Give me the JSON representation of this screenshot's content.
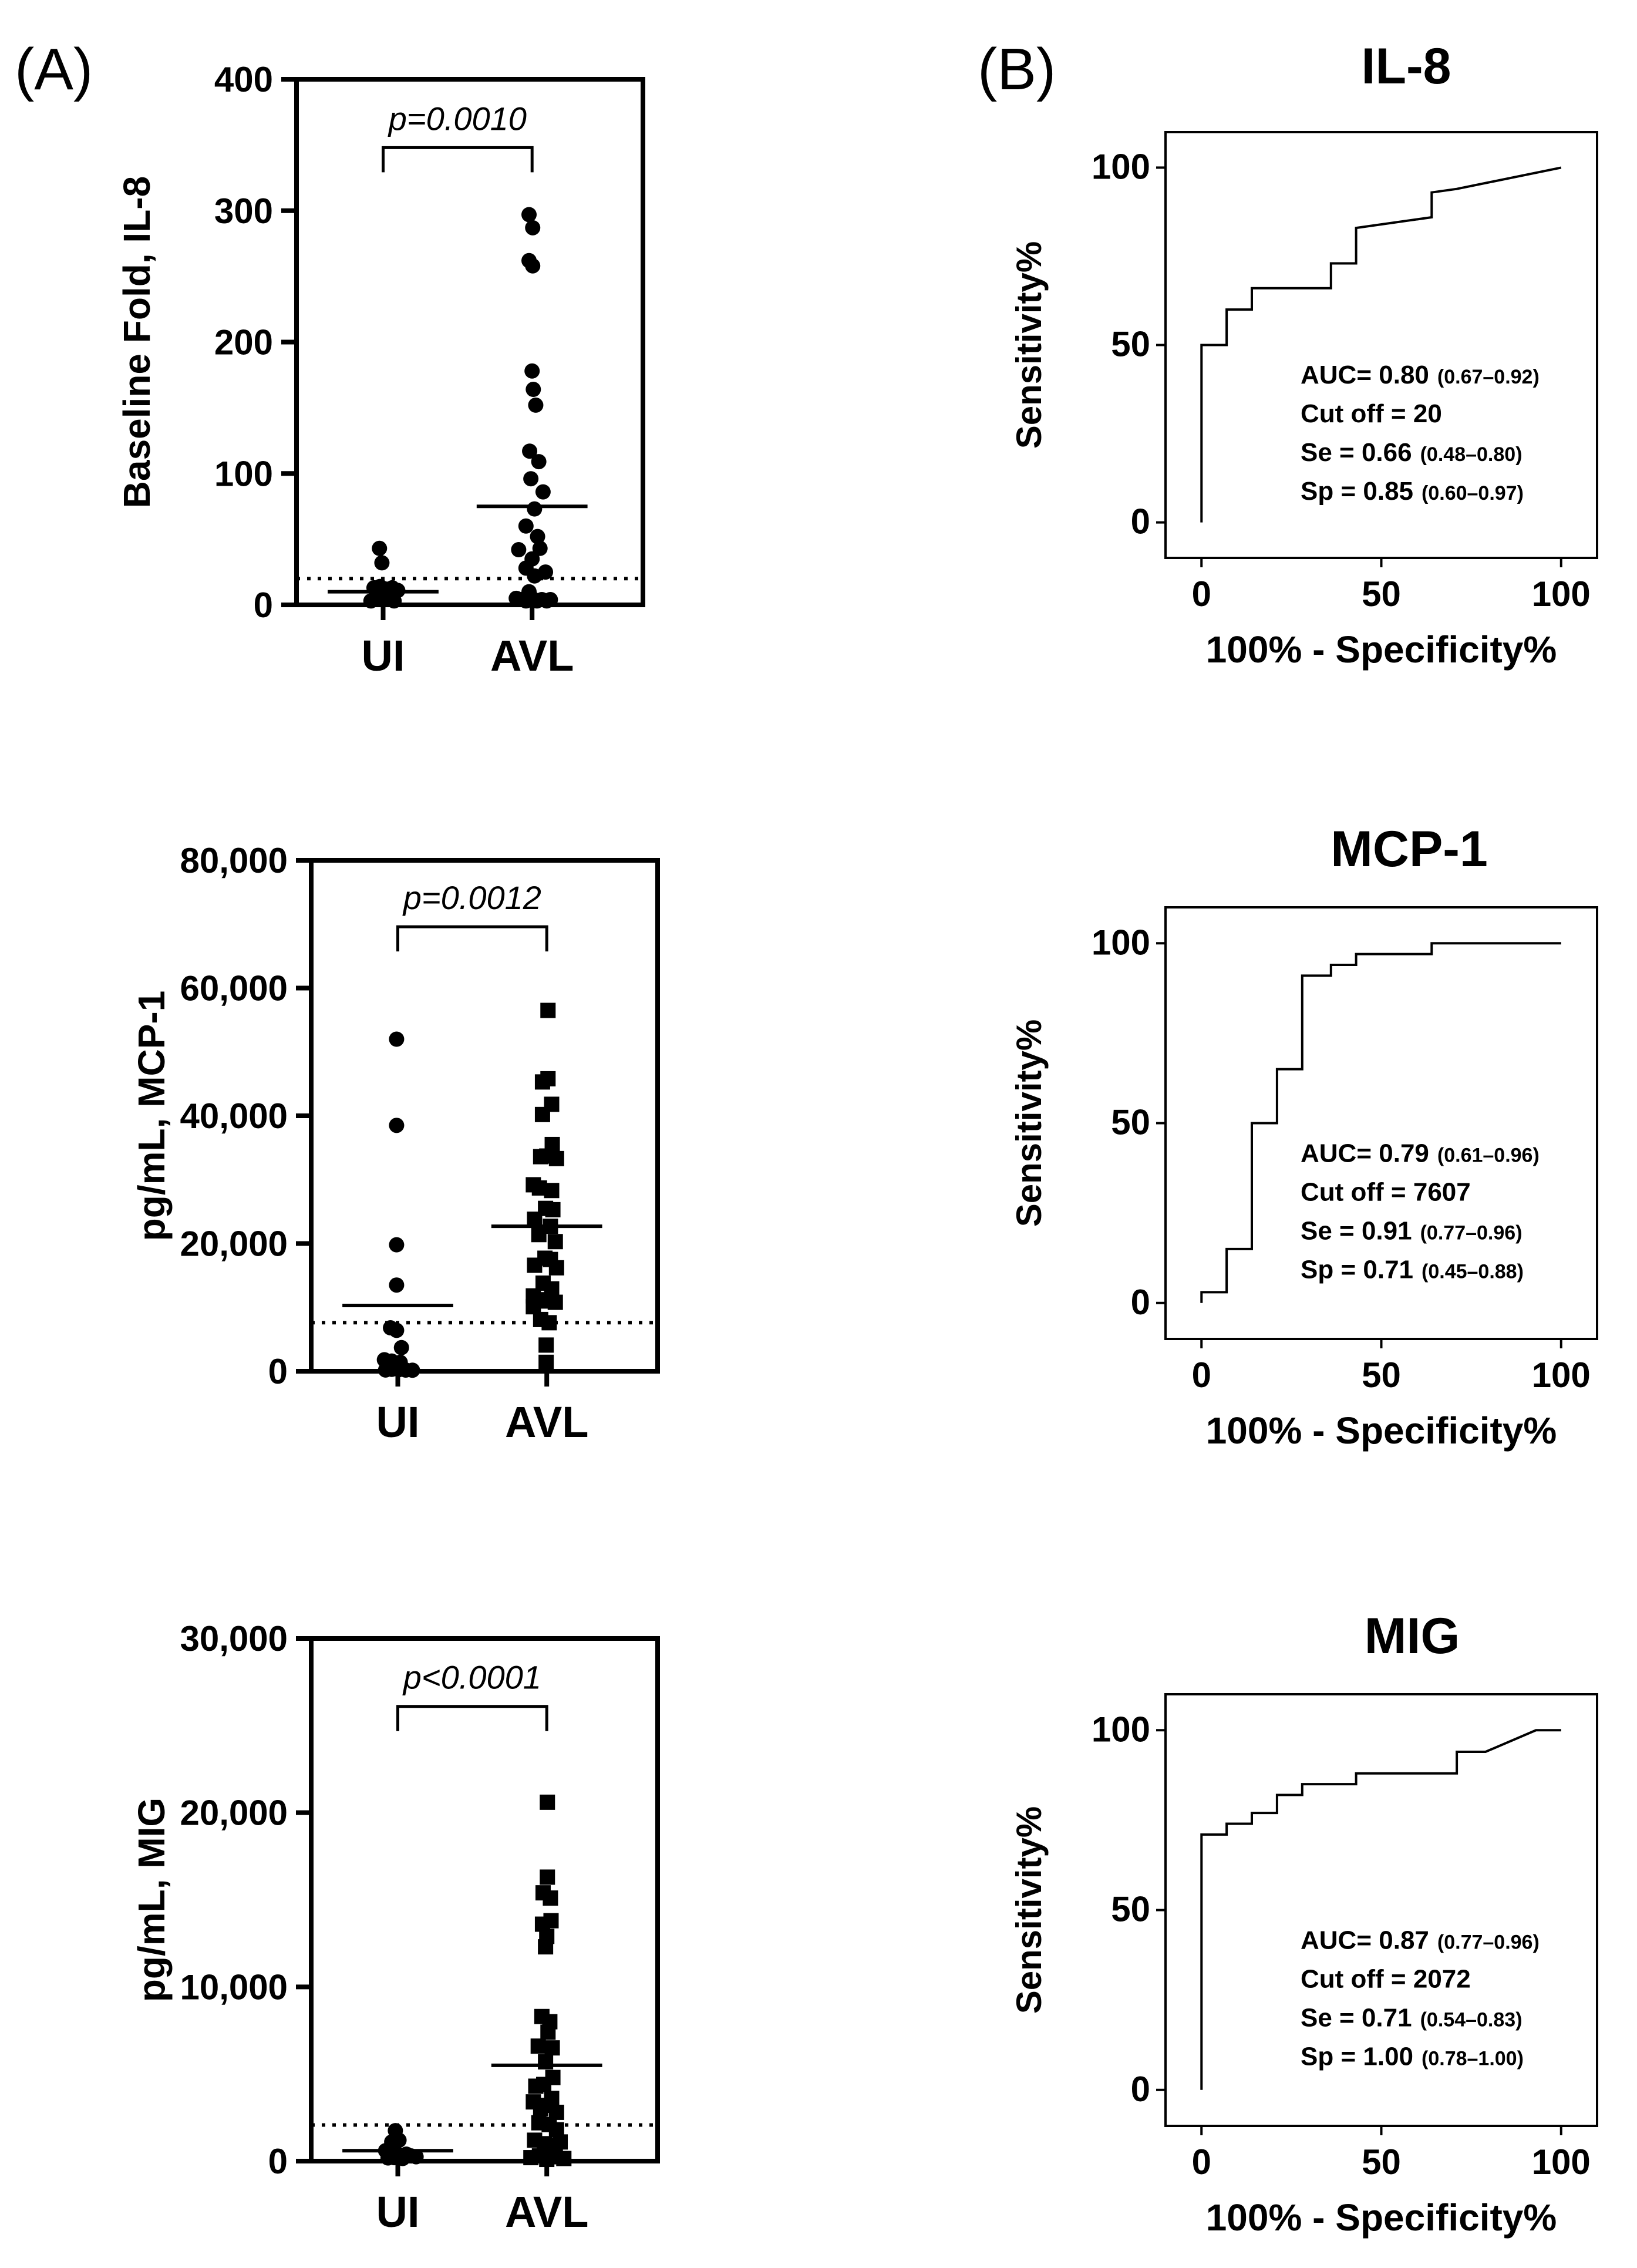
{
  "panel_labels": {
    "a": "(A)",
    "b": "(B)"
  },
  "chart_data": [
    {
      "type": "scatter",
      "id": "a1",
      "ylabel": "Baseline Fold, IL-8",
      "categories": [
        "UI",
        "AVL"
      ],
      "ylim": [
        0,
        400
      ],
      "yticks": [
        0,
        100,
        200,
        300,
        400
      ],
      "ytick_labels": [
        "0",
        "100",
        "200",
        "300",
        "400"
      ],
      "p_value": "p=0.0010",
      "cutoff_line": 20,
      "marker": {
        "UI": "circle",
        "AVL": "circle"
      },
      "series": [
        {
          "name": "UI",
          "mean": 10,
          "points": [
            [
              -0.2,
              3
            ],
            [
              -0.12,
              5
            ],
            [
              -0.05,
              8
            ],
            [
              0.02,
              4
            ],
            [
              0.1,
              6
            ],
            [
              0.18,
              3
            ],
            [
              -0.15,
              13
            ],
            [
              -0.05,
              14
            ],
            [
              0.05,
              12
            ],
            [
              0.15,
              13
            ],
            [
              0.24,
              11
            ],
            [
              -0.02,
              32
            ],
            [
              -0.06,
              43
            ]
          ]
        },
        {
          "name": "AVL",
          "mean": 75,
          "points": [
            [
              -0.05,
              297
            ],
            [
              0.01,
              287
            ],
            [
              -0.05,
              262
            ],
            [
              0.01,
              258
            ],
            [
              0.0,
              178
            ],
            [
              0.02,
              164
            ],
            [
              0.06,
              152
            ],
            [
              -0.04,
              117
            ],
            [
              0.11,
              109
            ],
            [
              -0.02,
              96
            ],
            [
              0.18,
              86
            ],
            [
              0.04,
              73
            ],
            [
              -0.1,
              60
            ],
            [
              0.09,
              52
            ],
            [
              -0.22,
              42
            ],
            [
              -0.1,
              28
            ],
            [
              0.0,
              35
            ],
            [
              0.13,
              43
            ],
            [
              0.22,
              25
            ],
            [
              0.04,
              22
            ],
            [
              -0.26,
              5
            ],
            [
              -0.18,
              4
            ],
            [
              -0.1,
              3
            ],
            [
              0.0,
              5
            ],
            [
              0.08,
              3
            ],
            [
              0.16,
              4
            ],
            [
              0.24,
              3
            ],
            [
              0.3,
              4
            ],
            [
              -0.05,
              10
            ]
          ]
        }
      ]
    },
    {
      "type": "scatter",
      "id": "a2",
      "ylabel": "pg/mL, MCP-1",
      "categories": [
        "UI",
        "AVL"
      ],
      "ylim": [
        0,
        80000
      ],
      "yticks": [
        0,
        20000,
        40000,
        60000,
        80000
      ],
      "ytick_labels": [
        "0",
        "20,000",
        "40,000",
        "60,000",
        "80,000"
      ],
      "p_value": "p=0.0012",
      "cutoff_line": 7607,
      "marker": {
        "UI": "circle",
        "AVL": "square"
      },
      "series": [
        {
          "name": "UI",
          "mean": 10300,
          "points": [
            [
              -0.02,
              52000
            ],
            [
              -0.02,
              38500
            ],
            [
              -0.02,
              19800
            ],
            [
              -0.02,
              13500
            ],
            [
              -0.12,
              6800
            ],
            [
              -0.02,
              6400
            ],
            [
              0.06,
              3700
            ],
            [
              -0.22,
              1800
            ],
            [
              -0.1,
              1600
            ],
            [
              0.04,
              1400
            ],
            [
              -0.2,
              200
            ],
            [
              -0.1,
              300
            ],
            [
              0.02,
              250
            ],
            [
              0.13,
              180
            ],
            [
              0.24,
              160
            ]
          ]
        },
        {
          "name": "AVL",
          "mean": 22700,
          "points": [
            [
              0.02,
              56500
            ],
            [
              0.02,
              45800
            ],
            [
              -0.07,
              45300
            ],
            [
              0.08,
              41800
            ],
            [
              -0.07,
              40200
            ],
            [
              0.09,
              35500
            ],
            [
              -0.1,
              33600
            ],
            [
              0.0,
              33700
            ],
            [
              0.16,
              33300
            ],
            [
              -0.22,
              29200
            ],
            [
              -0.12,
              28700
            ],
            [
              0.08,
              28300
            ],
            [
              -0.02,
              25500
            ],
            [
              0.1,
              25300
            ],
            [
              -0.2,
              23800
            ],
            [
              0.06,
              22700
            ],
            [
              -0.13,
              21400
            ],
            [
              0.14,
              20300
            ],
            [
              -0.03,
              17700
            ],
            [
              0.06,
              17500
            ],
            [
              -0.2,
              16600
            ],
            [
              0.16,
              16200
            ],
            [
              -0.06,
              13800
            ],
            [
              0.08,
              12900
            ],
            [
              -0.22,
              11800
            ],
            [
              -0.12,
              11200
            ],
            [
              0.0,
              11000
            ],
            [
              0.14,
              10800
            ],
            [
              -0.22,
              10100
            ],
            [
              -0.1,
              8100
            ],
            [
              0.04,
              7600
            ],
            [
              -0.01,
              4100
            ],
            [
              -0.01,
              1400
            ]
          ]
        }
      ]
    },
    {
      "type": "scatter",
      "id": "a3",
      "ylabel": "pg/mL, MIG",
      "categories": [
        "UI",
        "AVL"
      ],
      "ylim": [
        0,
        30000
      ],
      "yticks": [
        0,
        10000,
        20000,
        30000
      ],
      "ytick_labels": [
        "0",
        "10,000",
        "20,000",
        "30,000"
      ],
      "p_value": "p<0.0001",
      "cutoff_line": 2072,
      "marker": {
        "UI": "circle",
        "AVL": "square"
      },
      "series": [
        {
          "name": "UI",
          "mean": 600,
          "points": [
            [
              -0.04,
              1750
            ],
            [
              -0.1,
              1100
            ],
            [
              0.02,
              1200
            ],
            [
              -0.2,
              600
            ],
            [
              -0.12,
              400
            ],
            [
              -0.04,
              500
            ],
            [
              0.06,
              300
            ],
            [
              0.14,
              400
            ],
            [
              0.22,
              300
            ],
            [
              0.3,
              250
            ],
            [
              -0.06,
              200
            ],
            [
              0.08,
              150
            ],
            [
              -0.16,
              180
            ]
          ]
        },
        {
          "name": "AVL",
          "mean": 5500,
          "points": [
            [
              0.01,
              20600
            ],
            [
              0.01,
              16300
            ],
            [
              -0.06,
              15400
            ],
            [
              0.06,
              15100
            ],
            [
              -0.07,
              13600
            ],
            [
              0.07,
              13800
            ],
            [
              0.0,
              12900
            ],
            [
              -0.02,
              12300
            ],
            [
              -0.08,
              8300
            ],
            [
              0.05,
              8000
            ],
            [
              0.02,
              7400
            ],
            [
              -0.14,
              6600
            ],
            [
              0.09,
              6500
            ],
            [
              -0.02,
              5700
            ],
            [
              0.1,
              4800
            ],
            [
              -0.18,
              4300
            ],
            [
              -0.05,
              4400
            ],
            [
              0.08,
              3600
            ],
            [
              -0.22,
              3400
            ],
            [
              -0.1,
              3000
            ],
            [
              0.02,
              3200
            ],
            [
              0.16,
              2800
            ],
            [
              -0.13,
              2200
            ],
            [
              0.04,
              2100
            ],
            [
              0.16,
              1800
            ],
            [
              -0.2,
              1200
            ],
            [
              -0.04,
              1000
            ],
            [
              0.1,
              900
            ],
            [
              0.22,
              1100
            ],
            [
              -0.26,
              200
            ],
            [
              -0.12,
              300
            ],
            [
              0.0,
              100
            ],
            [
              0.14,
              250
            ],
            [
              0.28,
              150
            ]
          ]
        }
      ]
    },
    {
      "type": "line",
      "id": "b1",
      "title": "IL-8",
      "xlabel": "100% - Specificity%",
      "ylabel": "Sensitivity%",
      "xlim": [
        -10,
        110
      ],
      "ylim": [
        -10,
        110
      ],
      "xticks": [
        0,
        50,
        100
      ],
      "yticks": [
        0,
        50,
        100
      ],
      "x": [
        0,
        0,
        0,
        7,
        7,
        14,
        14,
        36,
        36,
        43,
        43,
        64,
        64,
        71,
        100
      ],
      "y": [
        0,
        47,
        50,
        50,
        60,
        60,
        66,
        66,
        73,
        73,
        83,
        86,
        93,
        94,
        100
      ],
      "stats": [
        {
          "label": "AUC= 0.80",
          "ci": "(0.67–0.92)"
        },
        {
          "label": "Cut off = 20",
          "ci": ""
        },
        {
          "label": "Se = 0.66",
          "ci": "(0.48–0.80)"
        },
        {
          "label": "Sp = 0.85",
          "ci": "(0.60–0.97)"
        }
      ]
    },
    {
      "type": "line",
      "id": "b2",
      "title": "MCP-1",
      "xlabel": "100% - Specificity%",
      "ylabel": "Sensitivity%",
      "xlim": [
        -10,
        110
      ],
      "ylim": [
        -10,
        110
      ],
      "xticks": [
        0,
        50,
        100
      ],
      "yticks": [
        0,
        50,
        100
      ],
      "x": [
        0,
        0,
        7,
        7,
        14,
        14,
        21,
        21,
        28,
        28,
        36,
        36,
        43,
        43,
        64,
        64,
        100
      ],
      "y": [
        0,
        3,
        3,
        15,
        15,
        50,
        50,
        65,
        65,
        91,
        91,
        94,
        94,
        97,
        97,
        100,
        100
      ],
      "stats": [
        {
          "label": "AUC= 0.79",
          "ci": "(0.61–0.96)"
        },
        {
          "label": "Cut off = 7607",
          "ci": ""
        },
        {
          "label": "Se = 0.91",
          "ci": "(0.77–0.96)"
        },
        {
          "label": "Sp = 0.71",
          "ci": "(0.45–0.88)"
        }
      ]
    },
    {
      "type": "line",
      "id": "b3",
      "title": "MIG",
      "xlabel": "100% - Specificity%",
      "ylabel": "Sensitivity%",
      "xlim": [
        -10,
        110
      ],
      "ylim": [
        -10,
        110
      ],
      "xticks": [
        0,
        50,
        100
      ],
      "yticks": [
        0,
        50,
        100
      ],
      "x": [
        0,
        0,
        7,
        7,
        14,
        14,
        21,
        21,
        28,
        28,
        43,
        43,
        71,
        71,
        79,
        93,
        100
      ],
      "y": [
        0,
        71,
        71,
        74,
        74,
        77,
        77,
        82,
        82,
        85,
        85,
        88,
        88,
        94,
        94,
        100,
        100
      ],
      "stats": [
        {
          "label": "AUC= 0.87",
          "ci": "(0.77–0.96)"
        },
        {
          "label": "Cut off = 2072",
          "ci": ""
        },
        {
          "label": "Se = 0.71",
          "ci": "(0.54–0.83)"
        },
        {
          "label": "Sp = 1.00",
          "ci": "(0.78–1.00)"
        }
      ]
    }
  ]
}
